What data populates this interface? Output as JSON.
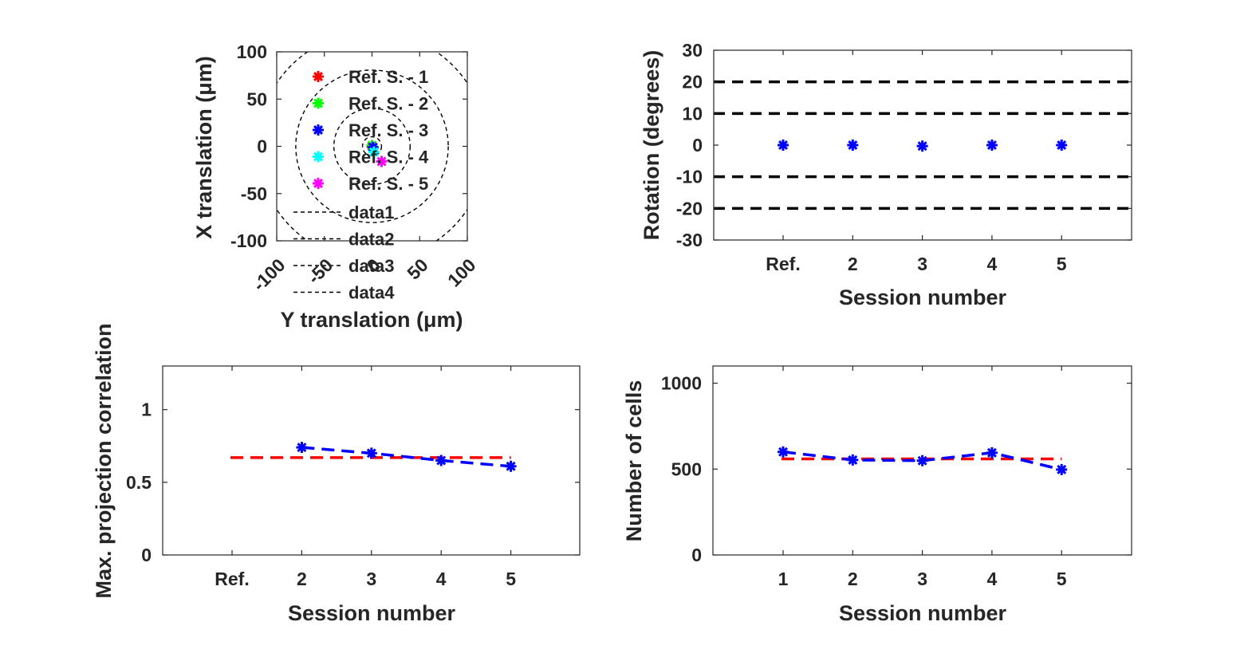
{
  "chart_data": [
    {
      "id": "translation",
      "type": "scatter",
      "xlabel": "Y translation (μm)",
      "ylabel": "X translation (μm)",
      "xlim": [
        -100,
        100
      ],
      "ylim": [
        -100,
        100
      ],
      "x_ticks": [
        "-100",
        "-50",
        "0",
        "50",
        "100"
      ],
      "y_ticks": [
        "100",
        "50",
        "0",
        "-50",
        "-100"
      ],
      "series": [
        {
          "name": "Ref. S. - 1",
          "color": "#ff0000",
          "x": 0,
          "y": 0
        },
        {
          "name": "Ref. S. - 2",
          "color": "#00ff00",
          "x": 0,
          "y": 1
        },
        {
          "name": "Ref. S. - 3",
          "color": "#0000ff",
          "x": 1,
          "y": -1
        },
        {
          "name": "Ref. S. - 4",
          "color": "#00ffff",
          "x": 2,
          "y": -6
        },
        {
          "name": "Ref. S. - 5",
          "color": "#ff00ff",
          "x": 10,
          "y": -16
        }
      ],
      "circles": [
        {
          "name": "data1",
          "radius": 10
        },
        {
          "name": "data2",
          "radius": 40
        },
        {
          "name": "data3",
          "radius": 80
        },
        {
          "name": "data4",
          "radius": 120
        }
      ],
      "legend": "inside-left"
    },
    {
      "id": "rotation",
      "type": "scatter",
      "xlabel": "Session number",
      "ylabel": "Rotation (degrees)",
      "categories": [
        "Ref.",
        "2",
        "3",
        "4",
        "5"
      ],
      "ylim": [
        -30,
        30
      ],
      "y_ticks": [
        "30",
        "20",
        "10",
        "0",
        "-10",
        "-20",
        "-30"
      ],
      "values": [
        0,
        0,
        -0.3,
        0,
        0
      ],
      "thresholds": [
        20,
        10,
        -10,
        -20
      ],
      "marker_color": "#0000ff",
      "threshold_color": "#000000"
    },
    {
      "id": "projection-correlation",
      "type": "line",
      "xlabel": "Session number",
      "ylabel": "Max. projection correlation",
      "categories": [
        "Ref.",
        "2",
        "3",
        "4",
        "5"
      ],
      "ylim": [
        0,
        1.3
      ],
      "y_ticks": [
        "1",
        "0.5",
        "0"
      ],
      "series": [
        {
          "values": [
            null,
            0.74,
            0.7,
            0.65,
            0.61
          ],
          "color": "#0000ff"
        }
      ],
      "mean_line": {
        "value": 0.67,
        "color": "#ff0000"
      }
    },
    {
      "id": "cell-count",
      "type": "line",
      "xlabel": "Session number",
      "ylabel": "Number of cells",
      "categories": [
        "1",
        "2",
        "3",
        "4",
        "5"
      ],
      "ylim": [
        0,
        1100
      ],
      "y_ticks": [
        "1000",
        "500",
        "0"
      ],
      "series": [
        {
          "values": [
            600,
            553,
            549,
            595,
            497
          ],
          "color": "#0000ff"
        }
      ],
      "mean_line": {
        "value": 559,
        "color": "#ff0000"
      }
    }
  ]
}
